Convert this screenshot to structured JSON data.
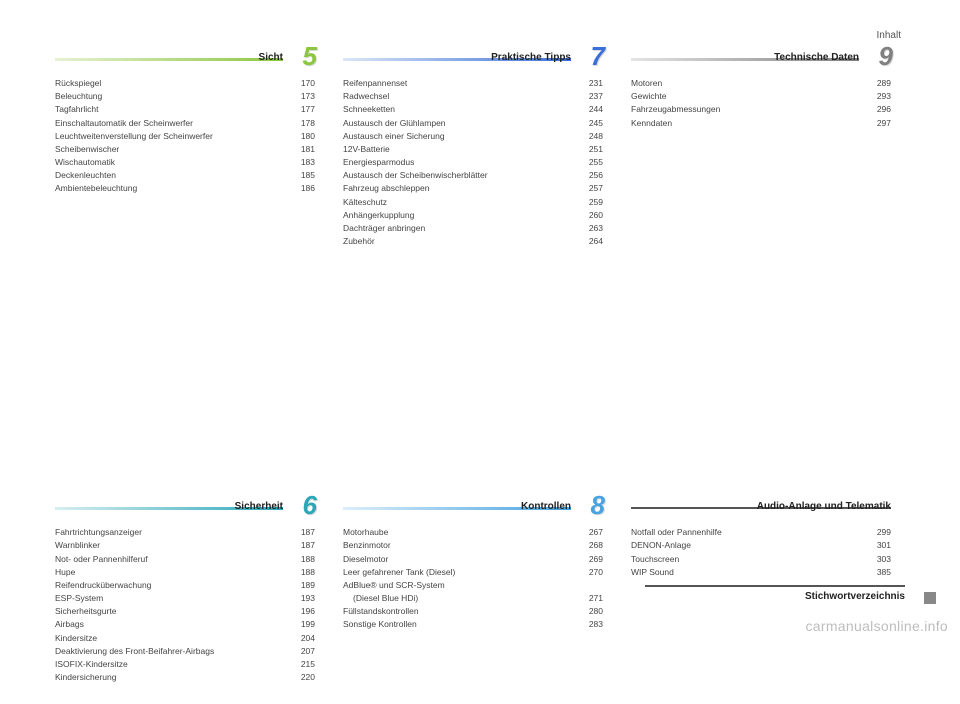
{
  "header": {
    "label": "Inhalt"
  },
  "footer": {
    "label": "Stichwortverzeichnis"
  },
  "watermark": "carmanualsonline.info",
  "sections": {
    "s5": {
      "num": "5",
      "title": "Sicht",
      "accent": "#8cc63f",
      "gradient_from": "#e6f2d4",
      "items": [
        {
          "l": "Rückspiegel",
          "p": "170"
        },
        {
          "l": "Beleuchtung",
          "p": "173"
        },
        {
          "l": "Tagfahrlicht",
          "p": "177"
        },
        {
          "l": "Einschaltautomatik der Scheinwerfer",
          "p": "178"
        },
        {
          "l": "Leuchtweitenverstellung der Scheinwerfer",
          "p": "180"
        },
        {
          "l": "Scheibenwischer",
          "p": "181"
        },
        {
          "l": "Wischautomatik",
          "p": "183"
        },
        {
          "l": "Deckenleuchten",
          "p": "185"
        },
        {
          "l": "Ambientebeleuchtung",
          "p": "186"
        }
      ]
    },
    "s7": {
      "num": "7",
      "title": "Praktische Tipps",
      "accent": "#3a6fd8",
      "gradient_from": "#dbe6f7",
      "items": [
        {
          "l": "Reifenpannenset",
          "p": "231"
        },
        {
          "l": "Radwechsel",
          "p": "237"
        },
        {
          "l": "Schneeketten",
          "p": "244"
        },
        {
          "l": "Austausch der Glühlampen",
          "p": "245"
        },
        {
          "l": "Austausch einer Sicherung",
          "p": "248"
        },
        {
          "l": "12V-Batterie",
          "p": "251"
        },
        {
          "l": "Energiesparmodus",
          "p": "255"
        },
        {
          "l": "Austausch der Scheibenwischerblätter",
          "p": "256"
        },
        {
          "l": "Fahrzeug abschleppen",
          "p": "257"
        },
        {
          "l": "Kälteschutz",
          "p": "259"
        },
        {
          "l": "Anhängerkupplung",
          "p": "260"
        },
        {
          "l": "Dachträger anbringen",
          "p": "263"
        },
        {
          "l": "Zubehör",
          "p": "264"
        }
      ]
    },
    "s9": {
      "num": "9",
      "title": "Technische Daten",
      "accent": "#808080",
      "gradient_from": "#e4e4e4",
      "items": [
        {
          "l": "Motoren",
          "p": "289"
        },
        {
          "l": "Gewichte",
          "p": "293"
        },
        {
          "l": "Fahrzeugabmessungen",
          "p": "296"
        },
        {
          "l": "Kenndaten",
          "p": "297"
        }
      ]
    },
    "s6": {
      "num": "6",
      "title": "Sicherheit",
      "accent": "#2aa8b8",
      "gradient_from": "#d7eef1",
      "items": [
        {
          "l": "Fahrtrichtungsanzeiger",
          "p": "187"
        },
        {
          "l": "Warnblinker",
          "p": "187"
        },
        {
          "l": "Not- oder Pannenhilferuf",
          "p": "188"
        },
        {
          "l": "Hupe",
          "p": "188"
        },
        {
          "l": "Reifendrucküberwachung",
          "p": "189"
        },
        {
          "l": "ESP-System",
          "p": "193"
        },
        {
          "l": "Sicherheitsgurte",
          "p": "196"
        },
        {
          "l": "Airbags",
          "p": "199"
        },
        {
          "l": "Kindersitze",
          "p": "204"
        },
        {
          "l": "Deaktivierung des Front-Beifahrer-Airbags",
          "p": "207"
        },
        {
          "l": "ISOFIX-Kindersitze",
          "p": "215"
        },
        {
          "l": "Kindersicherung",
          "p": "220"
        }
      ]
    },
    "s8": {
      "num": "8",
      "title": "Kontrollen",
      "accent": "#47a3e0",
      "gradient_from": "#dceefb",
      "items": [
        {
          "l": "Motorhaube",
          "p": "267"
        },
        {
          "l": "Benzinmotor",
          "p": "268"
        },
        {
          "l": "Dieselmotor",
          "p": "269"
        },
        {
          "l": "Leer gefahrener Tank (Diesel)",
          "p": "270"
        },
        {
          "l": "AdBlue® und SCR-System",
          "p": ""
        },
        {
          "l": "(Diesel Blue HDi)",
          "p": "271",
          "indent": true
        },
        {
          "l": "Füllstandskontrollen",
          "p": "280"
        },
        {
          "l": "Sonstige Kontrollen",
          "p": "283"
        }
      ]
    },
    "audio": {
      "title": "Audio-Anlage und Telematik",
      "items": [
        {
          "l": "Notfall oder Pannenhilfe",
          "p": "299"
        },
        {
          "l": "DENON-Anlage",
          "p": "301"
        },
        {
          "l": "Touchscreen",
          "p": "303"
        },
        {
          "l": "WIP Sound",
          "p": "385"
        }
      ]
    }
  }
}
